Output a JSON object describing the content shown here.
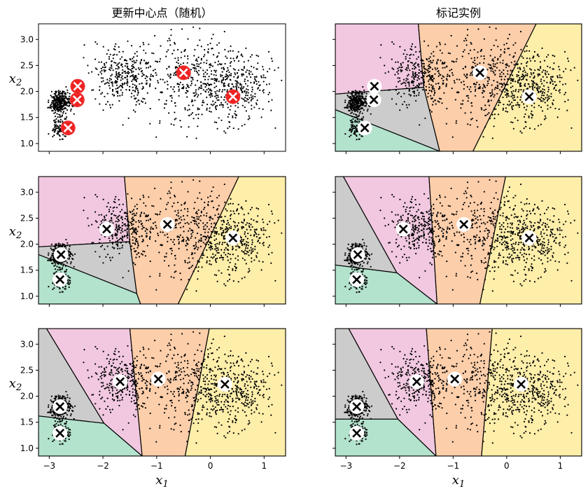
{
  "colors": {
    "region_pink": "#f1c8e0",
    "region_peach": "#fcceaa",
    "region_yellow": "#fdeeaa",
    "region_grey": "#cccccc",
    "region_green": "#b3e2cd",
    "points": "#000000",
    "marker_random": "#ee2222",
    "marker_default": "#000000"
  },
  "icons": {
    "centroid_marker": "x-in-circle-icon"
  },
  "chart_data": [
    {
      "type": "scatter",
      "title": "更新中心点（随机）",
      "panel": "row1-left",
      "xlabel": "",
      "ylabel": "x2",
      "xlim": [
        -3.2,
        1.4
      ],
      "ylim": [
        0.85,
        3.3
      ],
      "xticks": [
        "-3",
        "-2",
        "-1",
        "0",
        "1"
      ],
      "show_xtick_labels": false,
      "yticks": [
        "1.0",
        "1.5",
        "2.0",
        "2.5",
        "3.0"
      ],
      "show_ytick_labels": true,
      "clusters": [
        {
          "center": [
            -2.8,
            1.8
          ],
          "sd": 0.1
        },
        {
          "center": [
            -2.8,
            1.3
          ],
          "sd": 0.1
        },
        {
          "center": [
            -1.6,
            2.3
          ],
          "sd": 0.3
        },
        {
          "center": [
            -0.3,
            2.2
          ],
          "sd": 0.45
        },
        {
          "center": [
            0.45,
            2.1
          ],
          "sd": 0.35
        }
      ],
      "regions": [],
      "centroids": [
        [
          -2.47,
          2.1
        ],
        [
          -2.48,
          1.84
        ],
        [
          -2.65,
          1.3
        ],
        [
          -0.5,
          2.36
        ],
        [
          0.42,
          1.9
        ]
      ],
      "centroid_color": "#ee2222"
    },
    {
      "type": "scatter",
      "title": "标记实例",
      "panel": "row1-right",
      "xlabel": "",
      "ylabel": "",
      "xlim": [
        -3.2,
        1.4
      ],
      "ylim": [
        0.85,
        3.3
      ],
      "xticks": [
        "-3",
        "-2",
        "-1",
        "0",
        "1"
      ],
      "show_xtick_labels": false,
      "yticks": [
        "1.0",
        "1.5",
        "2.0",
        "2.5",
        "3.0"
      ],
      "show_ytick_labels": false,
      "clusters": [
        {
          "center": [
            -2.8,
            1.8
          ],
          "sd": 0.1
        },
        {
          "center": [
            -2.8,
            1.3
          ],
          "sd": 0.1
        },
        {
          "center": [
            -1.6,
            2.3
          ],
          "sd": 0.3
        },
        {
          "center": [
            -0.3,
            2.2
          ],
          "sd": 0.45
        },
        {
          "center": [
            0.45,
            2.1
          ],
          "sd": 0.35
        }
      ],
      "regions": [
        {
          "color": "region_pink",
          "poly": [
            [
              -3.2,
              3.3
            ],
            [
              -1.65,
              3.3
            ],
            [
              -1.55,
              2.08
            ],
            [
              -3.2,
              1.95
            ]
          ]
        },
        {
          "color": "region_grey",
          "poly": [
            [
              -3.2,
              1.95
            ],
            [
              -1.55,
              2.08
            ],
            [
              -1.25,
              0.85
            ],
            [
              -3.2,
              1.65
            ]
          ]
        },
        {
          "color": "region_green",
          "poly": [
            [
              -3.2,
              1.65
            ],
            [
              -1.25,
              0.85
            ],
            [
              -3.2,
              0.85
            ]
          ]
        },
        {
          "color": "region_peach",
          "poly": [
            [
              -1.65,
              3.3
            ],
            [
              0.55,
              3.3
            ],
            [
              -0.63,
              0.85
            ],
            [
              -1.25,
              0.85
            ],
            [
              -1.55,
              2.08
            ]
          ]
        },
        {
          "color": "region_yellow",
          "poly": [
            [
              0.55,
              3.3
            ],
            [
              1.4,
              3.3
            ],
            [
              1.4,
              0.85
            ],
            [
              -0.63,
              0.85
            ]
          ]
        }
      ],
      "centroids": [
        [
          -2.47,
          2.1
        ],
        [
          -2.48,
          1.84
        ],
        [
          -2.65,
          1.3
        ],
        [
          -0.5,
          2.36
        ],
        [
          0.42,
          1.9
        ]
      ],
      "centroid_color": "#000000"
    },
    {
      "type": "scatter",
      "title": "",
      "panel": "row2-left",
      "xlabel": "",
      "ylabel": "x2",
      "xlim": [
        -3.2,
        1.4
      ],
      "ylim": [
        0.85,
        3.3
      ],
      "xticks": [
        "-3",
        "-2",
        "-1",
        "0",
        "1"
      ],
      "show_xtick_labels": false,
      "yticks": [
        "1.0",
        "1.5",
        "2.0",
        "2.5",
        "3.0"
      ],
      "show_ytick_labels": true,
      "clusters": [
        {
          "center": [
            -2.8,
            1.8
          ],
          "sd": 0.1
        },
        {
          "center": [
            -2.8,
            1.3
          ],
          "sd": 0.1
        },
        {
          "center": [
            -1.6,
            2.3
          ],
          "sd": 0.3
        },
        {
          "center": [
            -0.3,
            2.2
          ],
          "sd": 0.45
        },
        {
          "center": [
            0.45,
            2.1
          ],
          "sd": 0.35
        }
      ],
      "regions": [
        {
          "color": "region_pink",
          "poly": [
            [
              -3.2,
              3.3
            ],
            [
              -1.6,
              3.3
            ],
            [
              -1.5,
              2.05
            ],
            [
              -3.2,
              1.95
            ]
          ]
        },
        {
          "color": "region_grey",
          "poly": [
            [
              -3.2,
              1.95
            ],
            [
              -1.5,
              2.05
            ],
            [
              -1.37,
              1.05
            ],
            [
              -3.2,
              1.8
            ]
          ]
        },
        {
          "color": "region_green",
          "poly": [
            [
              -3.2,
              1.8
            ],
            [
              -1.37,
              1.05
            ],
            [
              -1.3,
              0.85
            ],
            [
              -3.2,
              0.85
            ]
          ]
        },
        {
          "color": "region_peach",
          "poly": [
            [
              -1.6,
              3.3
            ],
            [
              0.53,
              3.3
            ],
            [
              -0.6,
              0.85
            ],
            [
              -1.3,
              0.85
            ],
            [
              -1.37,
              1.05
            ],
            [
              -1.5,
              2.05
            ]
          ]
        },
        {
          "color": "region_yellow",
          "poly": [
            [
              0.53,
              3.3
            ],
            [
              1.4,
              3.3
            ],
            [
              1.4,
              0.85
            ],
            [
              -0.6,
              0.85
            ]
          ]
        }
      ],
      "centroids": [
        [
          -1.93,
          2.29
        ],
        [
          -2.78,
          1.8
        ],
        [
          -2.8,
          1.32
        ],
        [
          -0.8,
          2.38
        ],
        [
          0.42,
          2.12
        ]
      ],
      "centroid_color": "#000000"
    },
    {
      "type": "scatter",
      "title": "",
      "panel": "row2-right",
      "xlabel": "",
      "ylabel": "",
      "xlim": [
        -3.2,
        1.4
      ],
      "ylim": [
        0.85,
        3.3
      ],
      "xticks": [
        "-3",
        "-2",
        "-1",
        "0",
        "1"
      ],
      "show_xtick_labels": false,
      "yticks": [
        "1.0",
        "1.5",
        "2.0",
        "2.5",
        "3.0"
      ],
      "show_ytick_labels": false,
      "clusters": [
        {
          "center": [
            -2.8,
            1.8
          ],
          "sd": 0.1
        },
        {
          "center": [
            -2.8,
            1.3
          ],
          "sd": 0.1
        },
        {
          "center": [
            -1.6,
            2.3
          ],
          "sd": 0.3
        },
        {
          "center": [
            -0.3,
            2.2
          ],
          "sd": 0.45
        },
        {
          "center": [
            0.45,
            2.1
          ],
          "sd": 0.35
        }
      ],
      "regions": [
        {
          "color": "region_grey",
          "poly": [
            [
              -3.2,
              3.3
            ],
            [
              -3.05,
              3.3
            ],
            [
              -2.05,
              1.45
            ],
            [
              -3.2,
              1.6
            ]
          ]
        },
        {
          "color": "region_pink",
          "poly": [
            [
              -3.05,
              3.3
            ],
            [
              -1.45,
              3.3
            ],
            [
              -1.3,
              0.85
            ],
            [
              -2.05,
              1.45
            ]
          ]
        },
        {
          "color": "region_green",
          "poly": [
            [
              -3.2,
              1.6
            ],
            [
              -2.05,
              1.45
            ],
            [
              -1.3,
              0.85
            ],
            [
              -3.2,
              0.85
            ]
          ]
        },
        {
          "color": "region_peach",
          "poly": [
            [
              -1.45,
              3.3
            ],
            [
              -0.02,
              3.3
            ],
            [
              -0.5,
              0.85
            ],
            [
              -1.3,
              0.85
            ]
          ]
        },
        {
          "color": "region_yellow",
          "poly": [
            [
              -0.02,
              3.3
            ],
            [
              1.4,
              3.3
            ],
            [
              1.4,
              0.85
            ],
            [
              -0.5,
              0.85
            ]
          ]
        }
      ],
      "centroids": [
        [
          -1.93,
          2.29
        ],
        [
          -2.78,
          1.8
        ],
        [
          -2.8,
          1.32
        ],
        [
          -0.8,
          2.38
        ],
        [
          0.42,
          2.12
        ]
      ],
      "centroid_color": "#000000"
    },
    {
      "type": "scatter",
      "title": "",
      "panel": "row3-left",
      "xlabel": "x1",
      "ylabel": "x2",
      "xlim": [
        -3.2,
        1.4
      ],
      "ylim": [
        0.85,
        3.3
      ],
      "xticks": [
        "-3",
        "-2",
        "-1",
        "0",
        "1"
      ],
      "show_xtick_labels": true,
      "yticks": [
        "1.0",
        "1.5",
        "2.0",
        "2.5",
        "3.0"
      ],
      "show_ytick_labels": true,
      "clusters": [
        {
          "center": [
            -2.8,
            1.8
          ],
          "sd": 0.1
        },
        {
          "center": [
            -2.8,
            1.3
          ],
          "sd": 0.1
        },
        {
          "center": [
            -1.6,
            2.3
          ],
          "sd": 0.3
        },
        {
          "center": [
            -0.3,
            2.2
          ],
          "sd": 0.45
        },
        {
          "center": [
            0.45,
            2.1
          ],
          "sd": 0.35
        }
      ],
      "regions": [
        {
          "color": "region_grey",
          "poly": [
            [
              -3.2,
              3.3
            ],
            [
              -3.05,
              3.3
            ],
            [
              -1.98,
              1.48
            ],
            [
              -3.2,
              1.62
            ]
          ]
        },
        {
          "color": "region_pink",
          "poly": [
            [
              -3.05,
              3.3
            ],
            [
              -1.5,
              3.3
            ],
            [
              -1.27,
              0.85
            ],
            [
              -1.98,
              1.48
            ]
          ]
        },
        {
          "color": "region_green",
          "poly": [
            [
              -3.2,
              1.62
            ],
            [
              -1.98,
              1.48
            ],
            [
              -1.27,
              0.85
            ],
            [
              -3.2,
              0.85
            ]
          ]
        },
        {
          "color": "region_peach",
          "poly": [
            [
              -1.5,
              3.3
            ],
            [
              -0.02,
              3.3
            ],
            [
              -0.47,
              0.85
            ],
            [
              -1.27,
              0.85
            ]
          ]
        },
        {
          "color": "region_yellow",
          "poly": [
            [
              -0.02,
              3.3
            ],
            [
              1.4,
              3.3
            ],
            [
              1.4,
              0.85
            ],
            [
              -0.47,
              0.85
            ]
          ]
        }
      ],
      "centroids": [
        [
          -1.68,
          2.28
        ],
        [
          -2.8,
          1.8
        ],
        [
          -2.8,
          1.29
        ],
        [
          -0.97,
          2.33
        ],
        [
          0.27,
          2.23
        ]
      ],
      "centroid_color": "#000000"
    },
    {
      "type": "scatter",
      "title": "",
      "panel": "row3-right",
      "xlabel": "x1",
      "ylabel": "",
      "xlim": [
        -3.2,
        1.4
      ],
      "ylim": [
        0.85,
        3.3
      ],
      "xticks": [
        "-3",
        "-2",
        "-1",
        "0",
        "1"
      ],
      "show_xtick_labels": true,
      "yticks": [
        "1.0",
        "1.5",
        "2.0",
        "2.5",
        "3.0"
      ],
      "show_ytick_labels": false,
      "clusters": [
        {
          "center": [
            -2.8,
            1.8
          ],
          "sd": 0.1
        },
        {
          "center": [
            -2.8,
            1.3
          ],
          "sd": 0.1
        },
        {
          "center": [
            -1.6,
            2.3
          ],
          "sd": 0.3
        },
        {
          "center": [
            -0.3,
            2.2
          ],
          "sd": 0.45
        },
        {
          "center": [
            0.45,
            2.1
          ],
          "sd": 0.35
        }
      ],
      "regions": [
        {
          "color": "region_grey",
          "poly": [
            [
              -3.2,
              3.3
            ],
            [
              -2.95,
              3.3
            ],
            [
              -2.03,
              1.56
            ],
            [
              -3.2,
              1.56
            ]
          ]
        },
        {
          "color": "region_pink",
          "poly": [
            [
              -2.95,
              3.3
            ],
            [
              -1.5,
              3.3
            ],
            [
              -1.32,
              0.85
            ],
            [
              -2.03,
              1.56
            ]
          ]
        },
        {
          "color": "region_green",
          "poly": [
            [
              -3.2,
              1.56
            ],
            [
              -2.03,
              1.56
            ],
            [
              -1.32,
              0.85
            ],
            [
              -3.2,
              0.85
            ]
          ]
        },
        {
          "color": "region_peach",
          "poly": [
            [
              -1.5,
              3.3
            ],
            [
              -0.27,
              3.3
            ],
            [
              -0.47,
              0.85
            ],
            [
              -1.32,
              0.85
            ]
          ]
        },
        {
          "color": "region_yellow",
          "poly": [
            [
              -0.27,
              3.3
            ],
            [
              1.4,
              3.3
            ],
            [
              1.4,
              0.85
            ],
            [
              -0.47,
              0.85
            ]
          ]
        }
      ],
      "centroids": [
        [
          -1.68,
          2.28
        ],
        [
          -2.8,
          1.8
        ],
        [
          -2.8,
          1.29
        ],
        [
          -0.97,
          2.33
        ],
        [
          0.27,
          2.23
        ]
      ],
      "centroid_color": "#000000"
    }
  ]
}
